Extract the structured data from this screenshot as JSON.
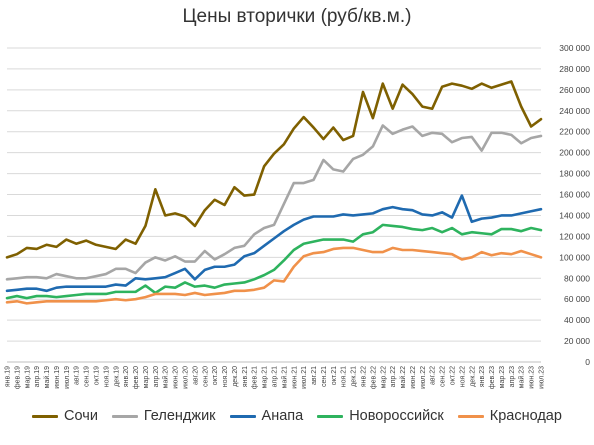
{
  "chart_data": {
    "type": "line",
    "title": "Цены вторички (руб/кв.м.)",
    "xlabel": "",
    "ylabel": "",
    "ylim": [
      0,
      300000
    ],
    "yticks": [
      0,
      20000,
      40000,
      60000,
      80000,
      100000,
      120000,
      140000,
      160000,
      180000,
      200000,
      220000,
      240000,
      260000,
      280000,
      300000
    ],
    "ytick_labels": [
      "0",
      "20 000",
      "40 000",
      "60 000",
      "80 000",
      "100 000",
      "120 000",
      "140 000",
      "160 000",
      "180 000",
      "200 000",
      "220 000",
      "240 000",
      "260 000",
      "280 000",
      "300 000"
    ],
    "grid": true,
    "legend_position": "bottom",
    "x": [
      "янв.19",
      "фев.19",
      "мар.19",
      "апр.19",
      "май.19",
      "июн.19",
      "июл.19",
      "авг.19",
      "сен.19",
      "окт.19",
      "ноя.19",
      "дек.19",
      "янв.20",
      "фев.20",
      "мар.20",
      "апр.20",
      "май.20",
      "июн.20",
      "июл.20",
      "авг.20",
      "сен.20",
      "окт.20",
      "ноя.20",
      "дек.20",
      "янв.21",
      "фев.21",
      "мар.21",
      "апр.21",
      "май.21",
      "июн.21",
      "июл.21",
      "авг.21",
      "сен.21",
      "окт.21",
      "ноя.21",
      "дек.21",
      "янв.22",
      "фев.22",
      "мар.22",
      "апр.22",
      "май.22",
      "июн.22",
      "июл.22",
      "авг.22",
      "сен.22",
      "окт.22",
      "ноя.22",
      "дек.22",
      "янв.23",
      "фев.23",
      "мар.23",
      "апр.23",
      "май.23",
      "июн.23",
      "июл.23"
    ],
    "series": [
      {
        "name": "Сочи",
        "color": "#7f6000",
        "values": [
          100000,
          103000,
          109000,
          108000,
          112000,
          110000,
          117000,
          113000,
          116000,
          112000,
          110000,
          108000,
          117000,
          113000,
          130000,
          165000,
          140000,
          142000,
          139000,
          130000,
          145000,
          155000,
          150000,
          167000,
          159000,
          160000,
          187000,
          199000,
          208000,
          223000,
          234000,
          224000,
          213000,
          224000,
          212000,
          216000,
          258000,
          233000,
          266000,
          242000,
          265000,
          256000,
          244000,
          242000,
          263000,
          266000,
          264000,
          261000,
          266000,
          262000,
          265000,
          268000,
          244000,
          225000,
          232000
        ]
      },
      {
        "name": "Геленджик",
        "color": "#a6a6a6",
        "values": [
          79000,
          80000,
          81000,
          81000,
          80000,
          84000,
          82000,
          80000,
          80000,
          82000,
          84000,
          89000,
          89000,
          85000,
          95000,
          100000,
          97000,
          101000,
          96000,
          96000,
          106000,
          98000,
          103000,
          109000,
          111000,
          122000,
          128000,
          131000,
          151000,
          171000,
          171000,
          174000,
          193000,
          184000,
          182000,
          194000,
          198000,
          206000,
          226000,
          218000,
          222000,
          225000,
          216000,
          219000,
          218000,
          210000,
          214000,
          215000,
          202000,
          219000,
          219000,
          217000,
          209000,
          214000,
          216000
        ]
      },
      {
        "name": "Анапа",
        "color": "#1f6ab0",
        "values": [
          68000,
          69000,
          70000,
          70000,
          68000,
          71000,
          72000,
          72000,
          72000,
          72000,
          72000,
          74000,
          73000,
          80000,
          79000,
          80000,
          81000,
          85000,
          89000,
          79000,
          88000,
          91000,
          91000,
          93000,
          101000,
          104000,
          111000,
          118000,
          125000,
          131000,
          136000,
          139000,
          139000,
          139000,
          141000,
          140000,
          141000,
          142000,
          146000,
          148000,
          146000,
          145000,
          141000,
          140000,
          143000,
          138000,
          159000,
          134000,
          137000,
          138000,
          140000,
          140000,
          142000,
          144000,
          146000
        ]
      },
      {
        "name": "Новороссийск",
        "color": "#2eb35e",
        "values": [
          61000,
          63000,
          61000,
          63000,
          63000,
          62000,
          63000,
          64000,
          65000,
          65000,
          65000,
          67000,
          67000,
          67000,
          73000,
          66000,
          72000,
          71000,
          76000,
          72000,
          73000,
          71000,
          74000,
          75000,
          76000,
          79000,
          83000,
          88000,
          97000,
          107000,
          113000,
          115000,
          117000,
          117000,
          117000,
          115000,
          122000,
          124000,
          131000,
          130000,
          129000,
          127000,
          126000,
          128000,
          124000,
          128000,
          122000,
          124000,
          123000,
          122000,
          127000,
          127000,
          125000,
          128000,
          126000
        ]
      },
      {
        "name": "Краснодар",
        "color": "#f0914a",
        "values": [
          57000,
          58000,
          56000,
          57000,
          58000,
          58000,
          58000,
          58000,
          58000,
          58000,
          59000,
          60000,
          59000,
          60000,
          62000,
          65000,
          65000,
          65000,
          64000,
          66000,
          64000,
          65000,
          66000,
          68000,
          68000,
          69000,
          71000,
          78000,
          77000,
          91000,
          101000,
          104000,
          105000,
          108000,
          109000,
          109000,
          107000,
          105000,
          105000,
          109000,
          107000,
          107000,
          106000,
          105000,
          104000,
          103000,
          98000,
          100000,
          105000,
          102000,
          104000,
          103000,
          106000,
          103000,
          100000
        ]
      }
    ]
  }
}
